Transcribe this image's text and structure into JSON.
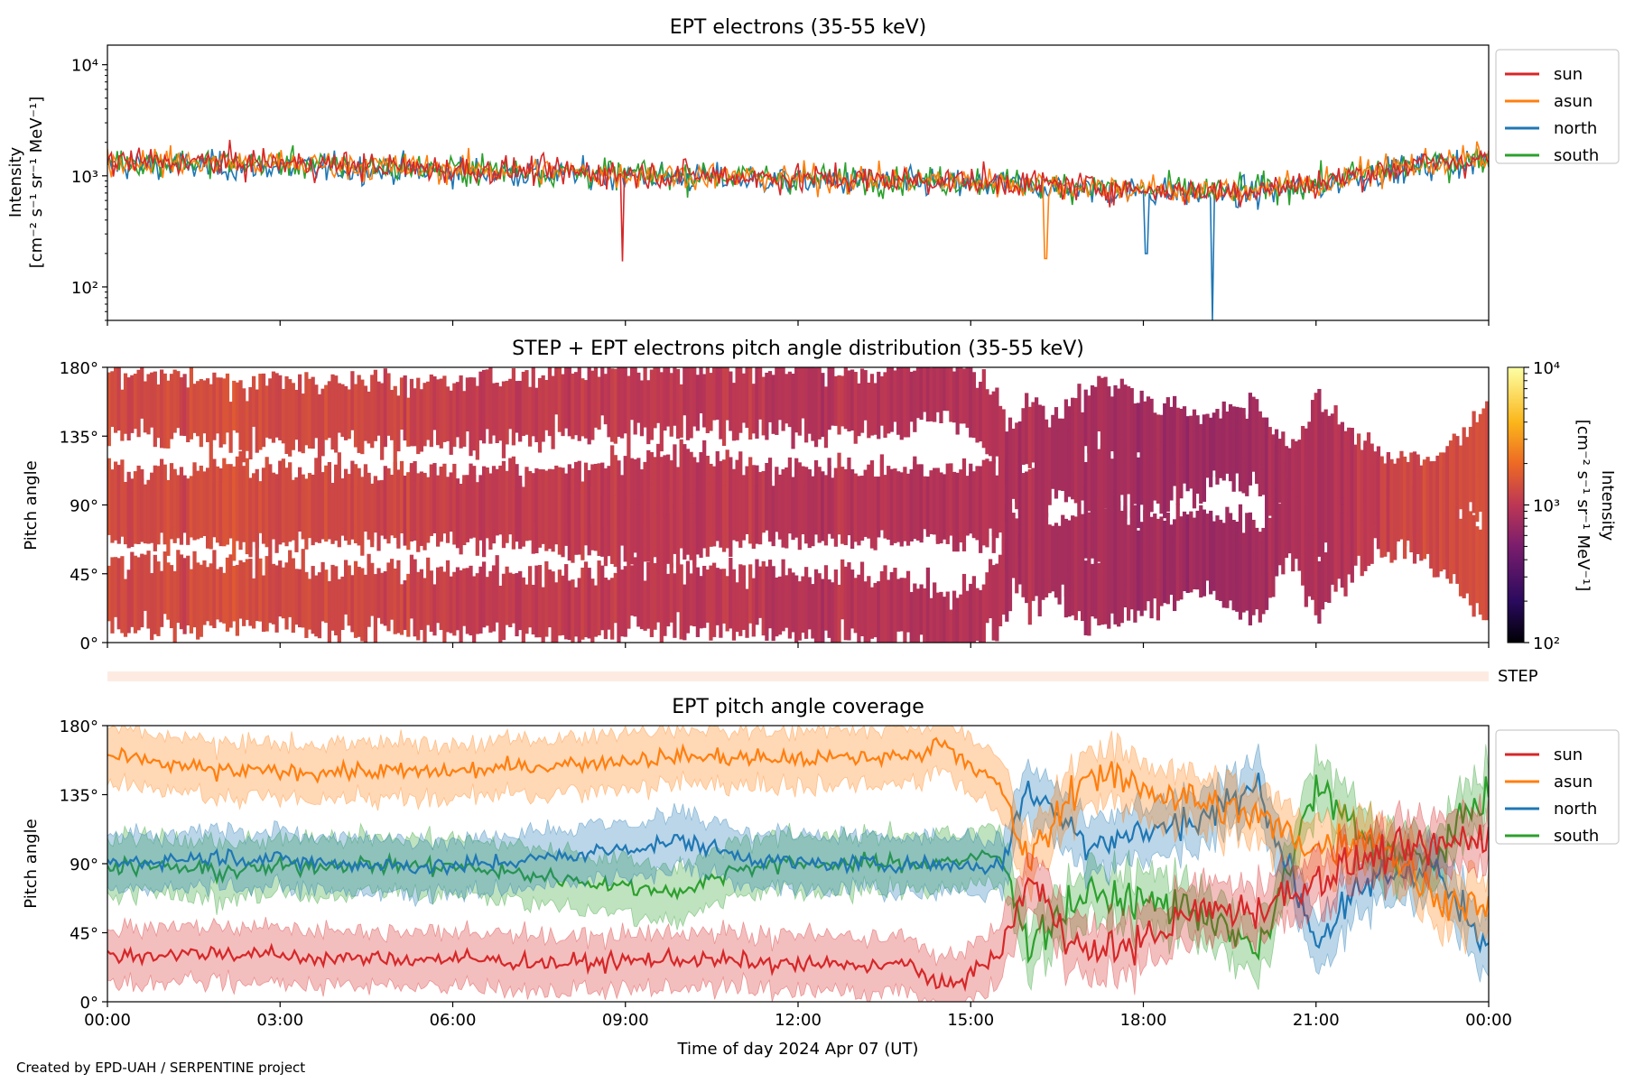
{
  "figure": {
    "credit": "Created by EPD-UAH / SERPENTINE project"
  },
  "colors": {
    "sun": "#d62728",
    "asun": "#ff7f0e",
    "north": "#1f77b4",
    "south": "#2ca02c"
  },
  "chart_data": [
    {
      "id": "intensity",
      "type": "line",
      "title": "EPT electrons (35-55 keV)",
      "ylabel": "Intensity",
      "ylabel_unit": "[cm⁻² s⁻¹ sr⁻¹ MeV⁻¹]",
      "yscale": "log",
      "ylim": [
        50,
        15000
      ],
      "yticks": [
        "10⁴",
        "10³",
        "10²"
      ],
      "xlim_hours": [
        0,
        24
      ],
      "legend": {
        "placement": "outside-right-top",
        "entries": [
          "sun",
          "asun",
          "north",
          "south"
        ]
      },
      "series": [
        {
          "name": "sun",
          "baseline_points": [
            [
              0,
              1350
            ],
            [
              3,
              1300
            ],
            [
              6,
              1150
            ],
            [
              9,
              1050
            ],
            [
              12,
              950
            ],
            [
              15,
              900
            ],
            [
              18,
              750
            ],
            [
              19.5,
              720
            ],
            [
              21,
              850
            ],
            [
              22.5,
              1200
            ],
            [
              24,
              1450
            ]
          ]
        },
        {
          "name": "asun",
          "baseline_points": [
            [
              0,
              1350
            ],
            [
              3,
              1300
            ],
            [
              6,
              1150
            ],
            [
              9,
              1050
            ],
            [
              12,
              950
            ],
            [
              15,
              900
            ],
            [
              18,
              750
            ],
            [
              19.5,
              720
            ],
            [
              21,
              850
            ],
            [
              22.5,
              1200
            ],
            [
              24,
              1450
            ]
          ]
        },
        {
          "name": "north",
          "baseline_points": [
            [
              0,
              1250
            ],
            [
              3,
              1200
            ],
            [
              6,
              1100
            ],
            [
              9,
              1000
            ],
            [
              12,
              900
            ],
            [
              15,
              850
            ],
            [
              18,
              720
            ],
            [
              19.5,
              680
            ],
            [
              21,
              800
            ],
            [
              22.5,
              1150
            ],
            [
              24,
              1400
            ]
          ]
        },
        {
          "name": "south",
          "baseline_points": [
            [
              0,
              1350
            ],
            [
              3,
              1300
            ],
            [
              6,
              1150
            ],
            [
              9,
              1050
            ],
            [
              12,
              950
            ],
            [
              15,
              900
            ],
            [
              18,
              750
            ],
            [
              19.5,
              720
            ],
            [
              21,
              850
            ],
            [
              22.5,
              1200
            ],
            [
              24,
              1450
            ]
          ]
        }
      ],
      "notable_dips": [
        {
          "series": "sun",
          "hour": 8.95,
          "value": 170
        },
        {
          "series": "north",
          "hour": 19.2,
          "value": 50
        },
        {
          "series": "asun",
          "hour": 16.3,
          "value": 180
        },
        {
          "series": "north",
          "hour": 18.05,
          "value": 200
        }
      ]
    },
    {
      "id": "pad",
      "type": "heatmap",
      "title": "STEP + EPT electrons pitch angle distribution (35-55 keV)",
      "ylabel": "Pitch angle",
      "ylim": [
        0,
        180
      ],
      "yticks": [
        "180°",
        "135°",
        "90°",
        "45°",
        "0°"
      ],
      "colorbar": {
        "label": "Intensity",
        "unit": "[cm⁻² s⁻¹ sr⁻¹ MeV⁻¹]",
        "scale": "log",
        "range": [
          100,
          10000
        ],
        "ticks": [
          "10⁴",
          "10³",
          "10²"
        ],
        "colormap": "inferno"
      }
    },
    {
      "id": "step",
      "type": "heatmap",
      "label": "STEP"
    },
    {
      "id": "coverage",
      "type": "line",
      "title": "EPT pitch angle coverage",
      "ylabel": "Pitch angle",
      "xlabel": "Time of day 2024 Apr 07 (UT)",
      "ylim": [
        0,
        180
      ],
      "yticks": [
        "180°",
        "135°",
        "90°",
        "45°",
        "0°"
      ],
      "xticks": [
        "00:00",
        "03:00",
        "06:00",
        "09:00",
        "12:00",
        "15:00",
        "18:00",
        "21:00",
        "00:00"
      ],
      "legend": {
        "placement": "outside-right-top",
        "entries": [
          "sun",
          "asun",
          "north",
          "south"
        ]
      },
      "series": [
        {
          "name": "sun",
          "points": [
            [
              0,
              30
            ],
            [
              2,
              32
            ],
            [
              4,
              28
            ],
            [
              6,
              28
            ],
            [
              8,
              25
            ],
            [
              10,
              28
            ],
            [
              12,
              24
            ],
            [
              14,
              24
            ],
            [
              14.5,
              8
            ],
            [
              15.5,
              30
            ],
            [
              16,
              80
            ],
            [
              17,
              30
            ],
            [
              18,
              40
            ],
            [
              19,
              60
            ],
            [
              20,
              60
            ],
            [
              21,
              80
            ],
            [
              22,
              95
            ],
            [
              23,
              100
            ],
            [
              24,
              110
            ]
          ]
        },
        {
          "name": "asun",
          "points": [
            [
              0,
              160
            ],
            [
              2,
              150
            ],
            [
              4,
              150
            ],
            [
              6,
              150
            ],
            [
              8,
              155
            ],
            [
              10,
              160
            ],
            [
              12,
              158
            ],
            [
              14,
              160
            ],
            [
              14.5,
              170
            ],
            [
              15.5,
              140
            ],
            [
              16,
              90
            ],
            [
              17,
              150
            ],
            [
              18,
              140
            ],
            [
              19,
              130
            ],
            [
              20,
              120
            ],
            [
              21,
              100
            ],
            [
              22,
              110
            ],
            [
              23,
              70
            ],
            [
              24,
              60
            ]
          ]
        },
        {
          "name": "north",
          "points": [
            [
              0,
              90
            ],
            [
              2,
              95
            ],
            [
              4,
              90
            ],
            [
              6,
              88
            ],
            [
              8,
              95
            ],
            [
              9,
              100
            ],
            [
              10,
              105
            ],
            [
              11,
              95
            ],
            [
              12,
              90
            ],
            [
              14,
              90
            ],
            [
              15.5,
              88
            ],
            [
              16,
              140
            ],
            [
              17,
              105
            ],
            [
              18,
              110
            ],
            [
              19,
              120
            ],
            [
              20,
              140
            ],
            [
              21,
              40
            ],
            [
              22,
              80
            ],
            [
              23,
              90
            ],
            [
              24,
              30
            ]
          ]
        },
        {
          "name": "south",
          "points": [
            [
              0,
              90
            ],
            [
              2,
              85
            ],
            [
              4,
              90
            ],
            [
              6,
              88
            ],
            [
              8,
              80
            ],
            [
              9,
              75
            ],
            [
              10,
              72
            ],
            [
              11,
              88
            ],
            [
              12,
              90
            ],
            [
              14,
              90
            ],
            [
              15.5,
              95
            ],
            [
              16,
              40
            ],
            [
              17,
              70
            ],
            [
              18,
              65
            ],
            [
              19,
              60
            ],
            [
              20,
              30
            ],
            [
              21,
              140
            ],
            [
              22,
              100
            ],
            [
              23,
              90
            ],
            [
              24,
              140
            ]
          ]
        }
      ]
    }
  ]
}
